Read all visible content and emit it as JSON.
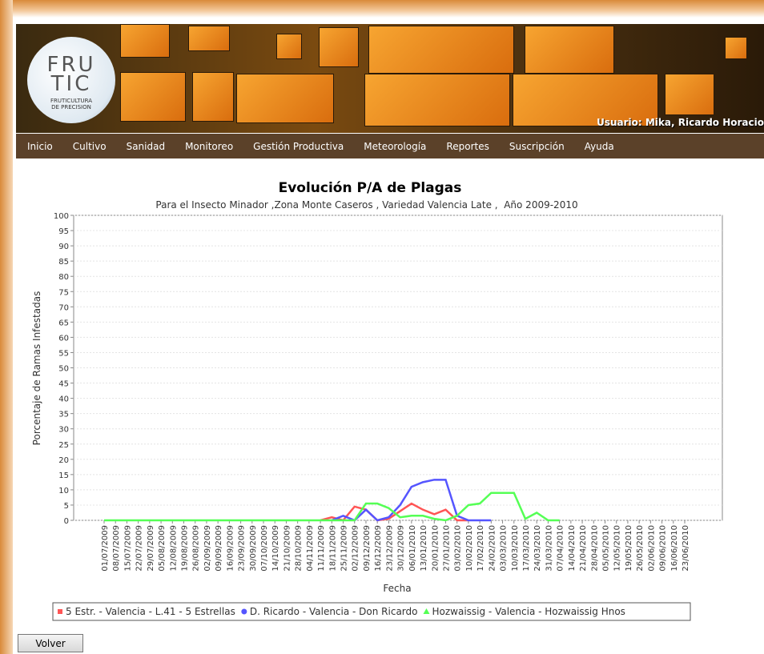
{
  "header": {
    "logo": [
      "FRU",
      "TIC"
    ],
    "logo_subtitle": [
      "FRUTICULTURA",
      "DE PRECISION"
    ],
    "user": "Usuario: Mika, Ricardo Horacio"
  },
  "nav": [
    "Inicio",
    "Cultivo",
    "Sanidad",
    "Monitoreo",
    "Gestión Productiva",
    "Meteorología",
    "Reportes",
    "Suscripción",
    "Ayuda"
  ],
  "chart_data": {
    "type": "line",
    "title": "Evolución P/A de Plagas",
    "subtitle": "Para el Insecto Minador ,Zona Monte Caseros , Variedad Valencia Late ,  Año 2009-2010",
    "x_label": "Fecha",
    "y_label": "Porcentaje de Ramas Infestadas",
    "categories": [
      "01/07/2009",
      "08/07/2009",
      "15/07/2009",
      "22/07/2009",
      "29/07/2009",
      "05/08/2009",
      "12/08/2009",
      "19/08/2009",
      "26/08/2009",
      "02/09/2009",
      "09/09/2009",
      "16/09/2009",
      "23/09/2009",
      "30/09/2009",
      "07/10/2009",
      "14/10/2009",
      "21/10/2009",
      "28/10/2009",
      "04/11/2009",
      "11/11/2009",
      "18/11/2009",
      "25/11/2009",
      "02/12/2009",
      "09/12/2009",
      "16/12/2009",
      "23/12/2009",
      "30/12/2009",
      "06/01/2010",
      "13/01/2010",
      "20/01/2010",
      "27/01/2010",
      "03/02/2010",
      "10/02/2010",
      "17/02/2010",
      "24/02/2010",
      "03/03/2010",
      "10/03/2010",
      "17/03/2010",
      "24/03/2010",
      "31/03/2010",
      "07/04/2010",
      "14/04/2010",
      "21/04/2010",
      "28/04/2010",
      "05/05/2010",
      "12/05/2010",
      "19/05/2010",
      "26/05/2010",
      "02/06/2010",
      "09/06/2010",
      "16/06/2010",
      "23/06/2010"
    ],
    "series": [
      {
        "name": "5 Estr. - Valencia - L.41 - 5 Estrellas",
        "color": "#ff5555",
        "values": [
          null,
          null,
          null,
          null,
          null,
          null,
          null,
          null,
          null,
          null,
          null,
          null,
          null,
          null,
          null,
          null,
          null,
          null,
          null,
          0,
          1,
          0,
          4.5,
          3.5,
          0,
          0.5,
          3,
          5.5,
          3.5,
          2,
          3.5,
          0,
          0,
          null,
          null,
          null,
          null,
          null,
          null,
          null,
          null,
          null,
          null,
          null,
          null,
          null,
          null,
          null,
          null,
          null,
          null,
          null
        ]
      },
      {
        "name": "D. Ricardo - Valencia - Don Ricardo",
        "color": "#5555ff",
        "values": [
          null,
          null,
          null,
          null,
          null,
          null,
          null,
          null,
          null,
          null,
          null,
          null,
          null,
          null,
          null,
          null,
          null,
          null,
          null,
          null,
          0,
          1.5,
          0,
          3.5,
          0,
          1,
          5,
          11,
          12.5,
          13.3,
          13.3,
          1.5,
          0,
          0,
          0,
          null,
          null,
          null,
          null,
          null,
          null,
          null,
          null,
          null,
          null,
          null,
          null,
          null,
          null,
          null,
          null,
          null
        ]
      },
      {
        "name": "Hozwaissig - Valencia - Hozwaissig Hnos",
        "color": "#55ff55",
        "values": [
          0,
          0,
          0,
          0,
          0,
          0,
          0,
          0,
          0,
          0,
          0,
          0,
          0,
          0,
          0,
          0,
          0,
          0,
          0,
          0,
          0,
          0,
          0,
          5.5,
          5.5,
          4,
          1,
          1.5,
          1.5,
          0.5,
          0,
          1.5,
          5,
          5.5,
          9,
          9,
          9,
          0.5,
          2.5,
          0,
          0,
          null,
          null,
          null,
          null,
          null,
          null,
          null,
          null,
          null,
          null,
          null
        ]
      }
    ],
    "ylim": [
      0,
      100
    ],
    "yticks": [
      0,
      5,
      10,
      15,
      20,
      25,
      30,
      35,
      40,
      45,
      50,
      55,
      60,
      65,
      70,
      75,
      80,
      85,
      90,
      95,
      100
    ],
    "grid": true,
    "legend": "bottom"
  },
  "button": "Volver"
}
